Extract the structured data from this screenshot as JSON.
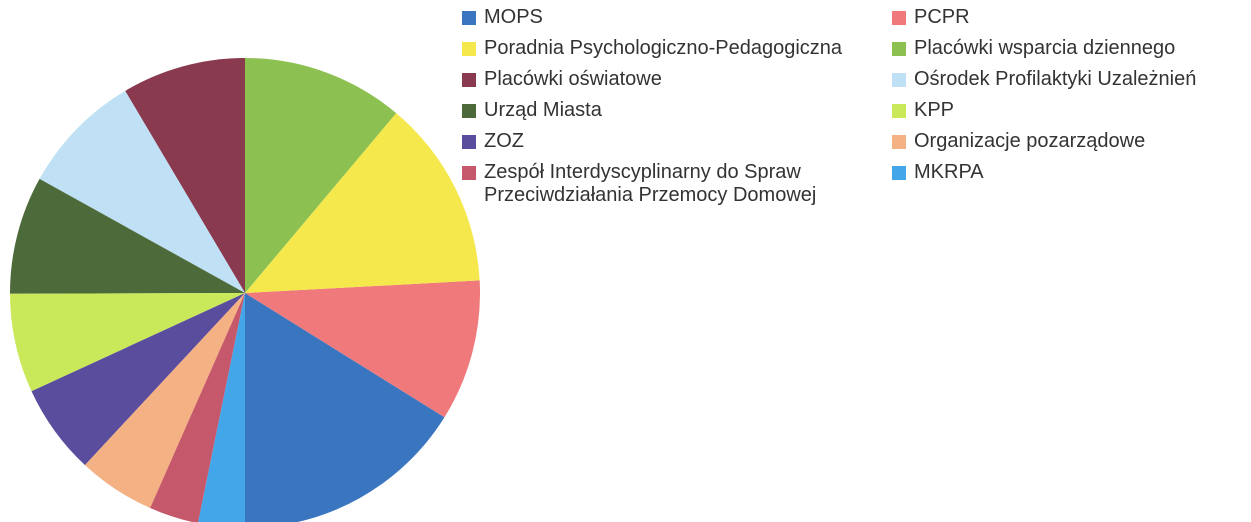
{
  "chart_data": {
    "type": "pie",
    "categories": [
      "MOPS",
      "PCPR",
      "Poradnia Psychologiczno-Pedagogiczna",
      "Placówki wsparcia dziennego",
      "Placówki oświatowe",
      "Ośrodek Profilaktyki Uzależnień",
      "Urząd Miasta",
      "KPP",
      "ZOZ",
      "Organizacje pozarządowe",
      "Zespół Interdyscyplinarny do Spraw Przeciwdziałania Przemocy Domowej",
      "MKRPA"
    ],
    "values": [
      16.1,
      9.7,
      13.0,
      11.1,
      8.5,
      8.4,
      8.1,
      6.8,
      6.2,
      5.3,
      3.4,
      3.2
    ],
    "colors": [
      "#3a76c0",
      "#f07a7b",
      "#f4e84d",
      "#8cc152",
      "#8a3a4f",
      "#bfe0f5",
      "#4d6b3a",
      "#c9e95b",
      "#5a4d9e",
      "#f4b183",
      "#c6586b",
      "#43a6e8"
    ],
    "legend": "right"
  }
}
